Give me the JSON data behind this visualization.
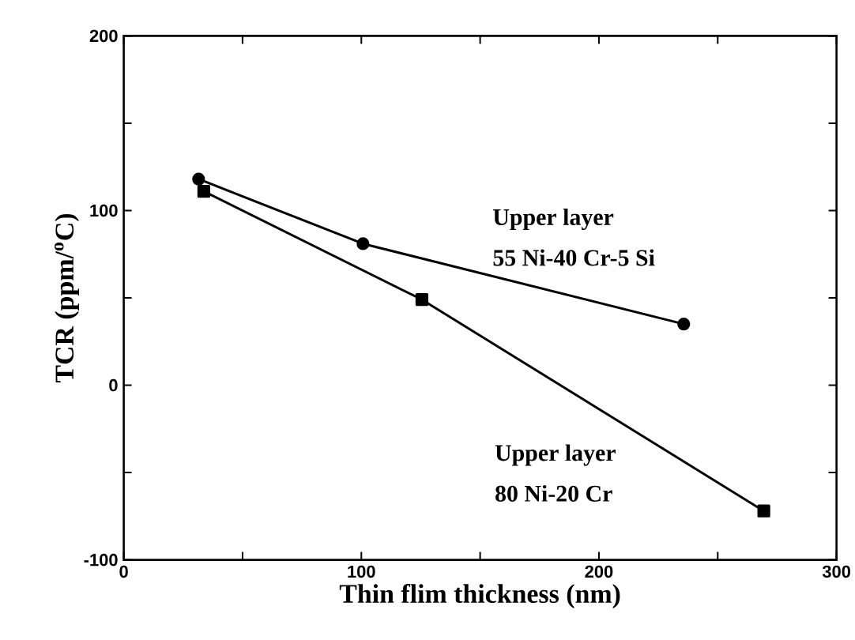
{
  "chart_data": {
    "type": "line",
    "xlabel": "Thin flim thickness (nm)",
    "ylabel": "TCR (ppm/$^{o}$C)",
    "xlim": [
      0,
      300
    ],
    "ylim": [
      -100,
      200
    ],
    "xticks": [
      0,
      {
        "value": 50,
        "label": null
      },
      100,
      {
        "value": 150,
        "label": null
      },
      200,
      {
        "value": 250,
        "label": null
      },
      300
    ],
    "yticks": [
      -100,
      {
        "value": -50,
        "label": null
      },
      0,
      {
        "value": 50,
        "label": null
      },
      100,
      {
        "value": 150,
        "label": null
      },
      200
    ],
    "grid": false,
    "legend": false,
    "line_style": "solid",
    "series": [
      {
        "color": "#000000",
        "marker": "circle",
        "x": [
          31.5,
          100.7,
          235.7
        ],
        "values": [
          118,
          81,
          35
        ]
      },
      {
        "color": "#000000",
        "marker": "square",
        "x": [
          33.7,
          125.5,
          269.4
        ],
        "values": [
          111,
          49,
          -72
        ]
      }
    ],
    "annotations": [
      "Upper layer",
      "55 Ni-40 Cr-5 Si",
      "Upper layer",
      "80 Ni-20 Cr"
    ]
  }
}
